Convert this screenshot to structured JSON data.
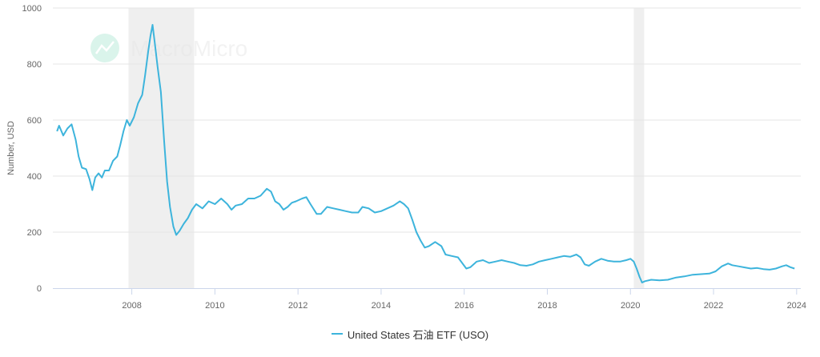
{
  "watermark": {
    "text": "MacroMicro"
  },
  "legend": {
    "series_label": "United States 石油 ETF (USO)"
  },
  "colors": {
    "series": "#3db4dc",
    "grid": "#e6e6e6",
    "shade": "#efefef",
    "axis": "#ccd6eb"
  },
  "chart_data": {
    "type": "line",
    "ylabel": "Number, USD",
    "ylim": [
      0,
      1000
    ],
    "yticks": [
      0,
      200,
      400,
      600,
      800,
      1000
    ],
    "xlim": [
      2006.1,
      2024.1
    ],
    "xticks": [
      "2008",
      "2010",
      "2012",
      "2014",
      "2016",
      "2018",
      "2020",
      "2022",
      "2024"
    ],
    "shaded_ranges": [
      [
        2007.92,
        2009.5
      ],
      [
        2020.08,
        2020.33
      ]
    ],
    "grid": "horizontal",
    "legend_position": "bottom",
    "series": [
      {
        "name": "United States 石油 ETF (USO)",
        "points": [
          [
            2006.2,
            560
          ],
          [
            2006.25,
            580
          ],
          [
            2006.35,
            545
          ],
          [
            2006.45,
            570
          ],
          [
            2006.55,
            585
          ],
          [
            2006.65,
            530
          ],
          [
            2006.72,
            470
          ],
          [
            2006.8,
            430
          ],
          [
            2006.9,
            425
          ],
          [
            2006.98,
            390
          ],
          [
            2007.05,
            350
          ],
          [
            2007.12,
            395
          ],
          [
            2007.2,
            410
          ],
          [
            2007.28,
            395
          ],
          [
            2007.35,
            420
          ],
          [
            2007.45,
            420
          ],
          [
            2007.55,
            455
          ],
          [
            2007.65,
            470
          ],
          [
            2007.72,
            510
          ],
          [
            2007.8,
            560
          ],
          [
            2007.88,
            600
          ],
          [
            2007.95,
            580
          ],
          [
            2008.05,
            610
          ],
          [
            2008.15,
            660
          ],
          [
            2008.25,
            690
          ],
          [
            2008.32,
            760
          ],
          [
            2008.4,
            850
          ],
          [
            2008.45,
            900
          ],
          [
            2008.5,
            940
          ],
          [
            2008.55,
            880
          ],
          [
            2008.62,
            790
          ],
          [
            2008.7,
            700
          ],
          [
            2008.78,
            520
          ],
          [
            2008.85,
            380
          ],
          [
            2008.92,
            290
          ],
          [
            2009.0,
            220
          ],
          [
            2009.07,
            190
          ],
          [
            2009.15,
            205
          ],
          [
            2009.25,
            230
          ],
          [
            2009.35,
            250
          ],
          [
            2009.45,
            280
          ],
          [
            2009.55,
            300
          ],
          [
            2009.7,
            285
          ],
          [
            2009.85,
            310
          ],
          [
            2010.0,
            300
          ],
          [
            2010.15,
            320
          ],
          [
            2010.3,
            300
          ],
          [
            2010.4,
            280
          ],
          [
            2010.5,
            295
          ],
          [
            2010.65,
            300
          ],
          [
            2010.8,
            320
          ],
          [
            2010.95,
            320
          ],
          [
            2011.1,
            330
          ],
          [
            2011.25,
            355
          ],
          [
            2011.35,
            345
          ],
          [
            2011.45,
            310
          ],
          [
            2011.55,
            300
          ],
          [
            2011.65,
            280
          ],
          [
            2011.75,
            290
          ],
          [
            2011.85,
            305
          ],
          [
            2011.95,
            310
          ],
          [
            2012.1,
            320
          ],
          [
            2012.2,
            325
          ],
          [
            2012.3,
            300
          ],
          [
            2012.45,
            265
          ],
          [
            2012.55,
            265
          ],
          [
            2012.7,
            290
          ],
          [
            2012.85,
            285
          ],
          [
            2013.0,
            280
          ],
          [
            2013.15,
            275
          ],
          [
            2013.3,
            270
          ],
          [
            2013.45,
            270
          ],
          [
            2013.55,
            290
          ],
          [
            2013.7,
            285
          ],
          [
            2013.85,
            270
          ],
          [
            2014.0,
            275
          ],
          [
            2014.15,
            285
          ],
          [
            2014.3,
            295
          ],
          [
            2014.45,
            310
          ],
          [
            2014.55,
            300
          ],
          [
            2014.65,
            285
          ],
          [
            2014.75,
            245
          ],
          [
            2014.85,
            200
          ],
          [
            2014.95,
            170
          ],
          [
            2015.05,
            145
          ],
          [
            2015.15,
            150
          ],
          [
            2015.3,
            165
          ],
          [
            2015.45,
            150
          ],
          [
            2015.55,
            120
          ],
          [
            2015.7,
            115
          ],
          [
            2015.85,
            110
          ],
          [
            2015.95,
            90
          ],
          [
            2016.05,
            70
          ],
          [
            2016.15,
            75
          ],
          [
            2016.3,
            95
          ],
          [
            2016.45,
            100
          ],
          [
            2016.6,
            90
          ],
          [
            2016.75,
            95
          ],
          [
            2016.9,
            100
          ],
          [
            2017.05,
            95
          ],
          [
            2017.2,
            90
          ],
          [
            2017.35,
            82
          ],
          [
            2017.5,
            80
          ],
          [
            2017.65,
            85
          ],
          [
            2017.8,
            95
          ],
          [
            2017.95,
            100
          ],
          [
            2018.1,
            105
          ],
          [
            2018.25,
            110
          ],
          [
            2018.4,
            115
          ],
          [
            2018.55,
            112
          ],
          [
            2018.7,
            120
          ],
          [
            2018.8,
            110
          ],
          [
            2018.9,
            85
          ],
          [
            2019.0,
            80
          ],
          [
            2019.15,
            95
          ],
          [
            2019.3,
            105
          ],
          [
            2019.45,
            98
          ],
          [
            2019.6,
            95
          ],
          [
            2019.75,
            95
          ],
          [
            2019.9,
            100
          ],
          [
            2020.0,
            105
          ],
          [
            2020.08,
            95
          ],
          [
            2020.15,
            70
          ],
          [
            2020.22,
            40
          ],
          [
            2020.28,
            20
          ],
          [
            2020.35,
            25
          ],
          [
            2020.5,
            30
          ],
          [
            2020.7,
            28
          ],
          [
            2020.9,
            30
          ],
          [
            2021.1,
            38
          ],
          [
            2021.3,
            42
          ],
          [
            2021.5,
            48
          ],
          [
            2021.7,
            50
          ],
          [
            2021.9,
            52
          ],
          [
            2022.05,
            60
          ],
          [
            2022.2,
            78
          ],
          [
            2022.35,
            88
          ],
          [
            2022.45,
            82
          ],
          [
            2022.6,
            78
          ],
          [
            2022.75,
            74
          ],
          [
            2022.9,
            70
          ],
          [
            2023.05,
            72
          ],
          [
            2023.2,
            68
          ],
          [
            2023.35,
            66
          ],
          [
            2023.5,
            70
          ],
          [
            2023.65,
            78
          ],
          [
            2023.75,
            82
          ],
          [
            2023.85,
            75
          ],
          [
            2023.95,
            70
          ]
        ]
      }
    ]
  }
}
